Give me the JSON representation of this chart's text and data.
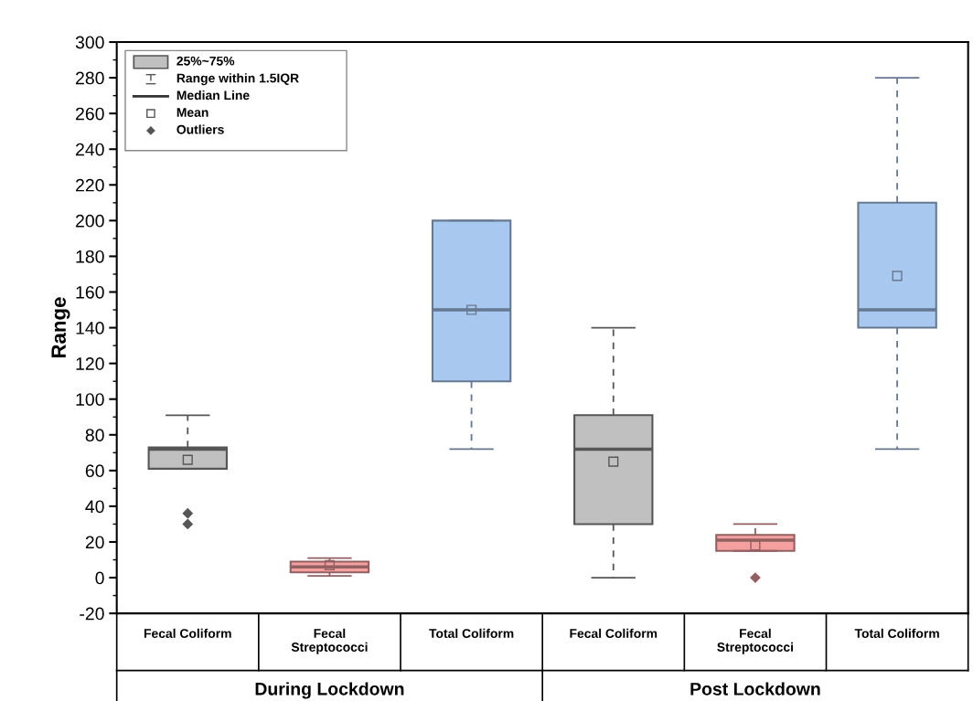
{
  "chart_data": {
    "type": "box",
    "ylabel": "Range",
    "categories": [
      "Fecal Coliform",
      "Fecal\nStreptococci",
      "Total Coliform",
      "Fecal Coliform",
      "Fecal\nStreptococci",
      "Total Coliform"
    ],
    "boxes": [
      {
        "low": 61,
        "q1": 61,
        "median": 72,
        "q3": 73,
        "high": 91,
        "mean": 66,
        "outliers": [
          36,
          30
        ]
      },
      {
        "low": 1,
        "q1": 3,
        "median": 6,
        "q3": 9,
        "high": 11,
        "mean": 7
      },
      {
        "low": 72,
        "q1": 110,
        "median": 150,
        "q3": 200,
        "high": 200,
        "mean": 150
      },
      {
        "low": 0,
        "q1": 30,
        "median": 72,
        "q3": 91,
        "high": 140,
        "mean": 65
      },
      {
        "low": 15,
        "q1": 15,
        "median": 21,
        "q3": 24,
        "high": 30,
        "mean": 18,
        "outliers": [
          0
        ]
      },
      {
        "low": 72,
        "q1": 140,
        "median": 150,
        "q3": 210,
        "high": 280,
        "mean": 169
      }
    ],
    "colors": [
      "#c0c0c0",
      "#f4a0a0",
      "#a8c8f0",
      "#c0c0c0",
      "#f4a0a0",
      "#a8c8f0"
    ],
    "ylim": [
      -20,
      300
    ],
    "yticks": [
      -20,
      0,
      20,
      40,
      60,
      80,
      100,
      120,
      140,
      160,
      180,
      200,
      220,
      240,
      260,
      280,
      300
    ],
    "grid": false,
    "annotations": [
      "25%~75%",
      "Range within 1.5IQR",
      "Median Line",
      "Mean",
      "Outliers",
      "During Lockdown",
      "Post Lockdown"
    ]
  }
}
